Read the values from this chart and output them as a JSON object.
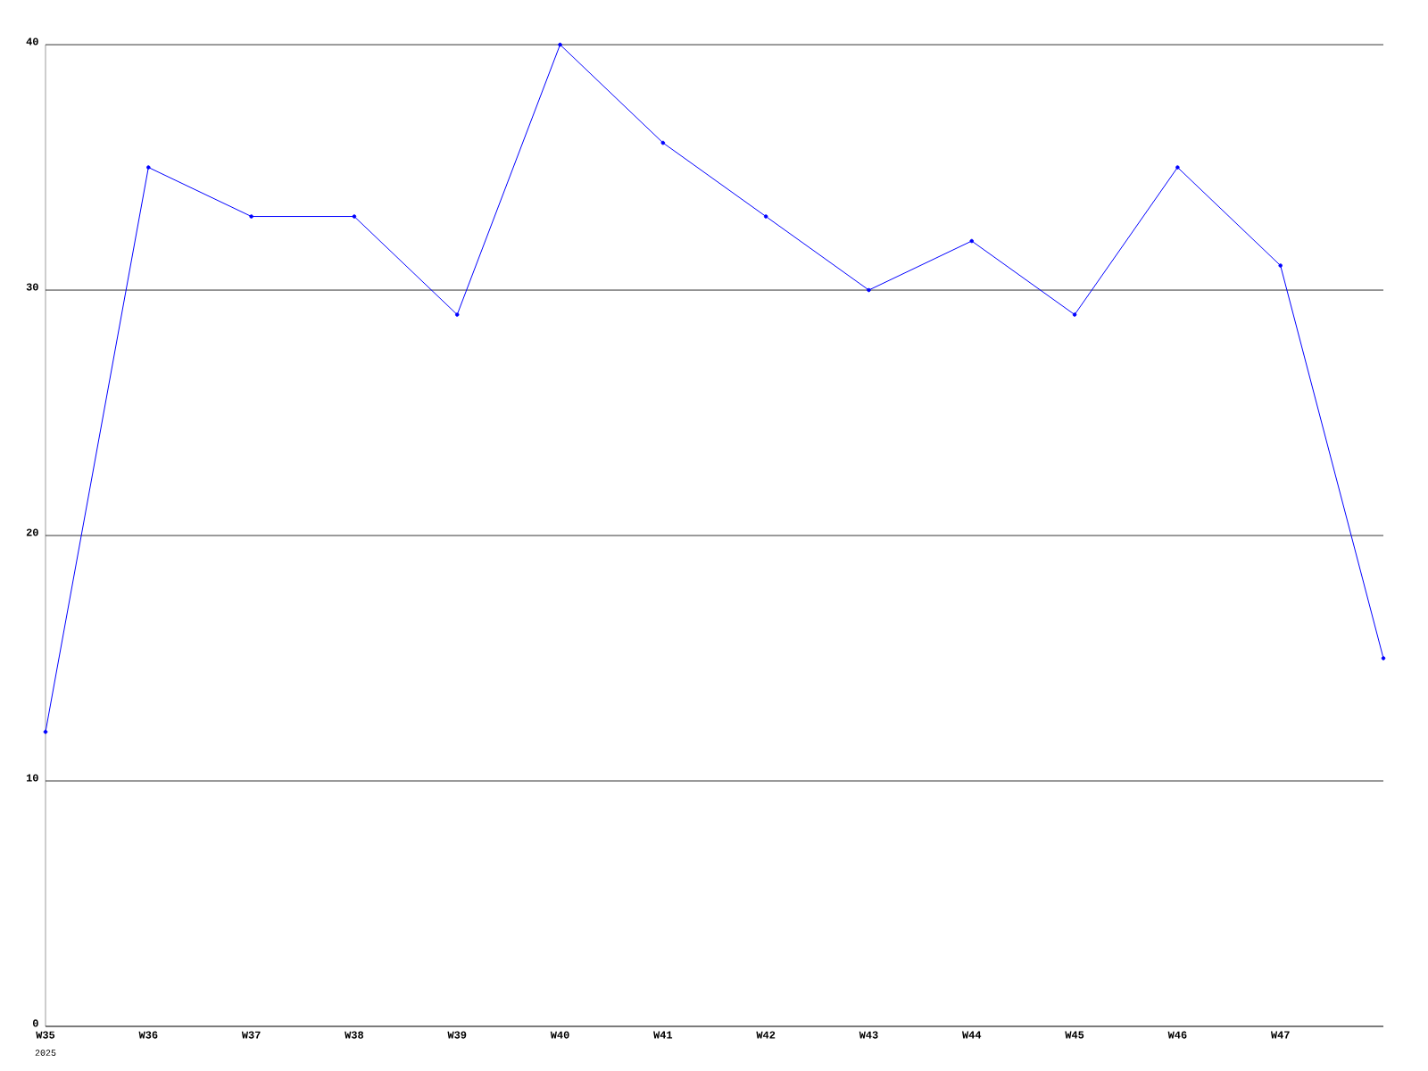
{
  "chart_data": {
    "type": "line",
    "categories": [
      "W35",
      "W36",
      "W37",
      "W38",
      "W39",
      "W40",
      "W41",
      "W42",
      "W43",
      "W44",
      "W45",
      "W46",
      "W47",
      null
    ],
    "values": [
      12,
      35,
      33,
      33,
      29,
      40,
      36,
      33,
      30,
      32,
      29,
      35,
      31,
      15
    ],
    "color": "#0000ff",
    "marker": "circle",
    "line_style": "solid",
    "ylim": [
      0,
      40
    ],
    "yticks": [
      0,
      10,
      20,
      30,
      40
    ],
    "grid": "y",
    "annotations": [
      "2025"
    ]
  }
}
